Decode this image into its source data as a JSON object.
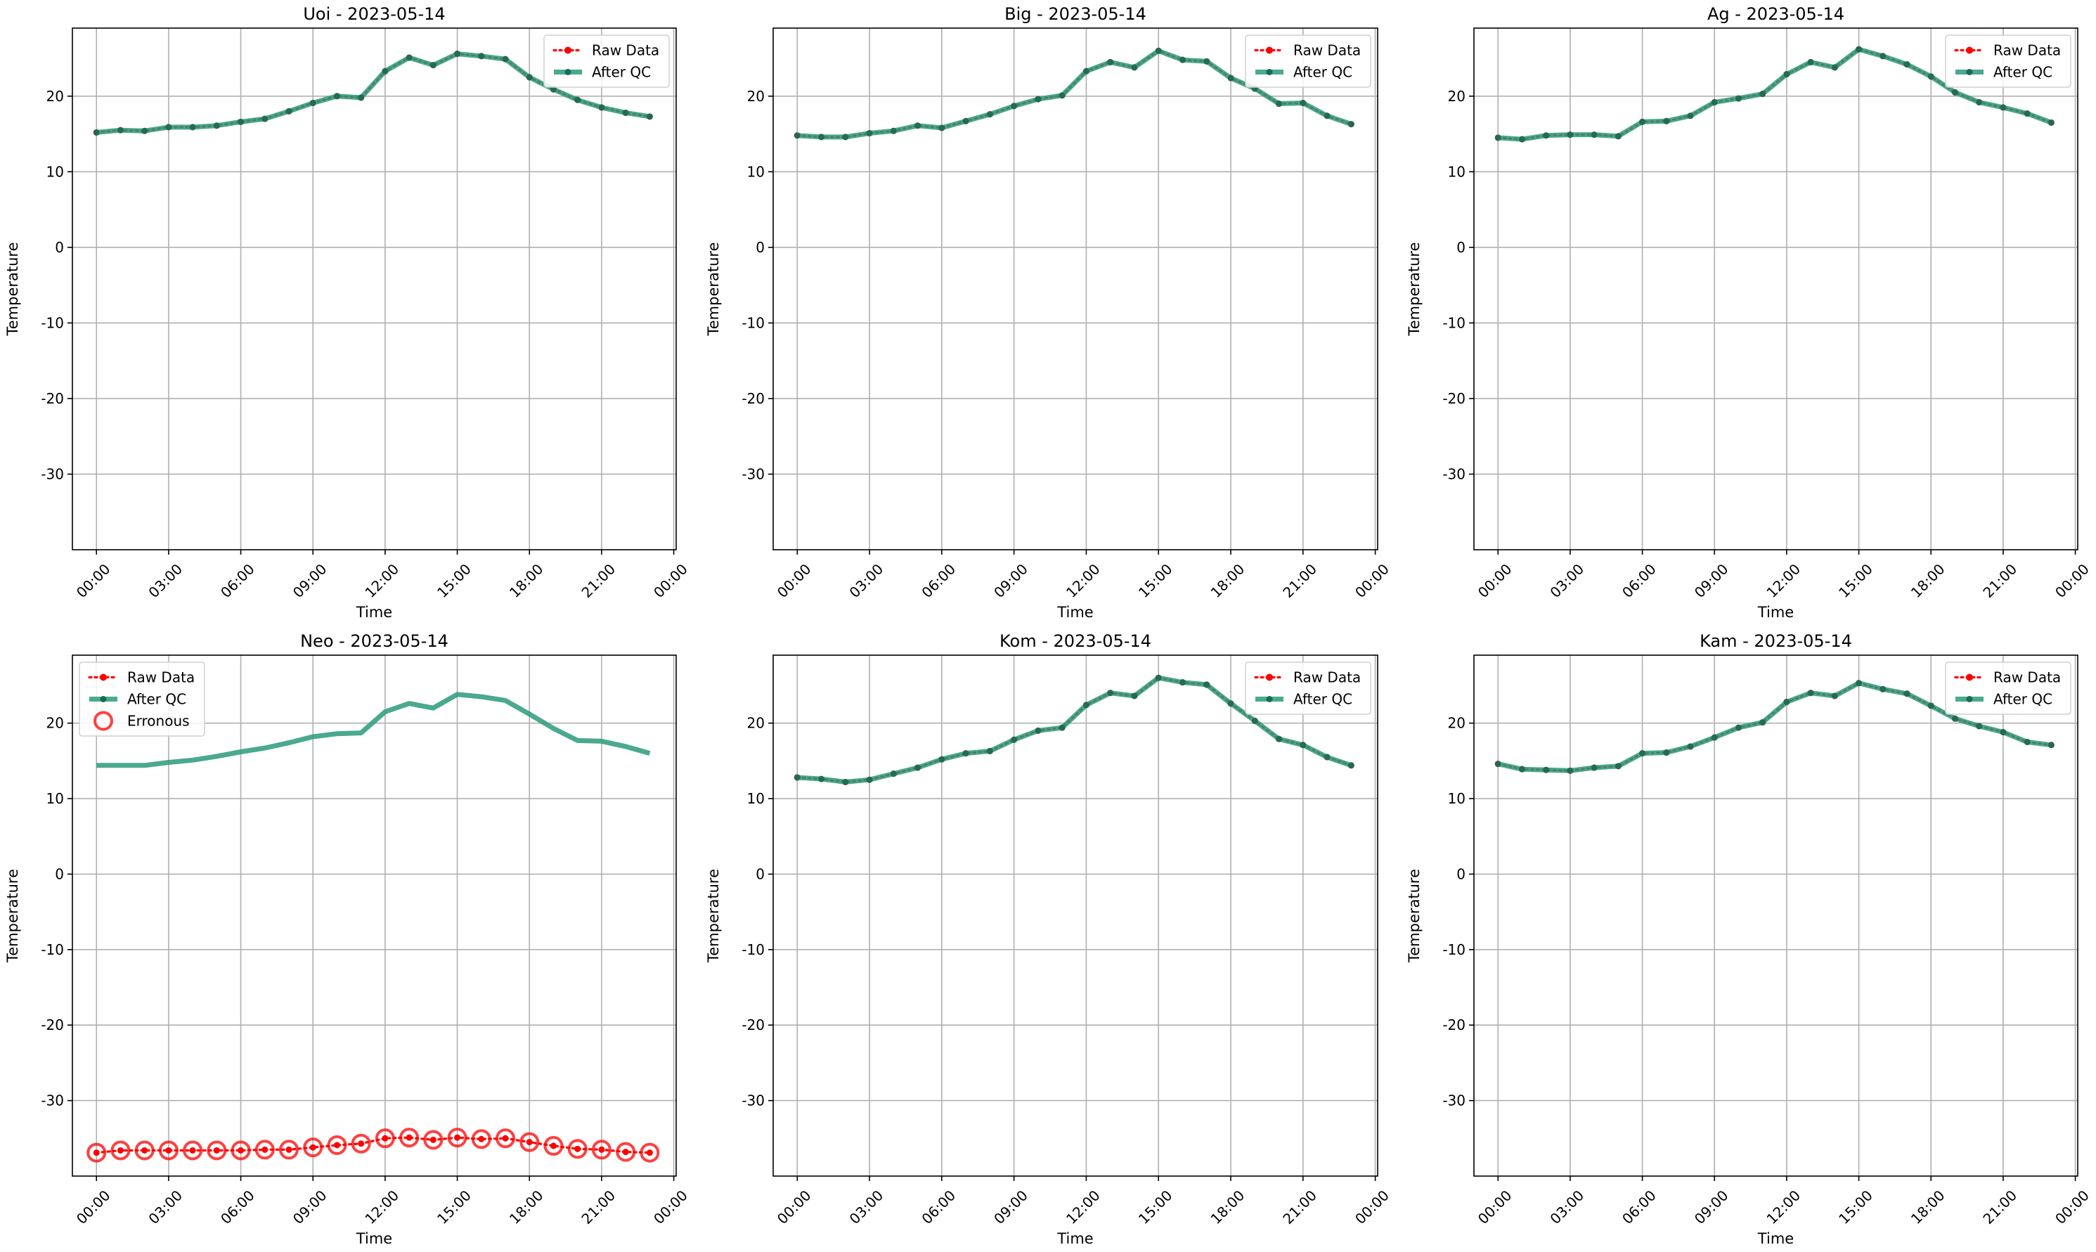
{
  "chart_data": [
    {
      "type": "line",
      "title": "Uoi - 2023-05-14",
      "xlabel": "Time",
      "ylabel": "Temperature",
      "ylim": [
        -40,
        29
      ],
      "xlim_hours": [
        -1,
        24.1
      ],
      "grid": true,
      "legend_position": "upper-right",
      "x_ticks": [
        "00:00",
        "03:00",
        "06:00",
        "09:00",
        "12:00",
        "15:00",
        "18:00",
        "21:00",
        "00:00"
      ],
      "y_ticks": [
        20,
        10,
        0,
        -10,
        -20,
        -30
      ],
      "x_hours": [
        0,
        1,
        2,
        3,
        4,
        5,
        6,
        7,
        8,
        9,
        10,
        11,
        12,
        13,
        14,
        15,
        16,
        17,
        18,
        19,
        20,
        21,
        22,
        23
      ],
      "series": [
        {
          "name": "Raw Data",
          "color": "#ff0000",
          "style": "dotted-markers",
          "values": [
            15.2,
            15.5,
            15.4,
            15.9,
            15.9,
            16.1,
            16.6,
            17.0,
            18.0,
            19.1,
            20.0,
            19.8,
            23.3,
            25.1,
            24.1,
            25.6,
            25.3,
            24.9,
            22.5,
            20.9,
            19.5,
            18.5,
            17.8,
            17.3
          ]
        },
        {
          "name": "After QC",
          "color": "#2a9a7a",
          "style": "thick-line",
          "values": [
            15.2,
            15.5,
            15.4,
            15.9,
            15.9,
            16.1,
            16.6,
            17.0,
            18.0,
            19.1,
            20.0,
            19.8,
            23.3,
            25.1,
            24.1,
            25.6,
            25.3,
            24.9,
            22.5,
            20.9,
            19.5,
            18.5,
            17.8,
            17.3
          ]
        }
      ]
    },
    {
      "type": "line",
      "title": "Big - 2023-05-14",
      "xlabel": "Time",
      "ylabel": "Temperature",
      "ylim": [
        -40,
        29
      ],
      "xlim_hours": [
        -1,
        24.1
      ],
      "grid": true,
      "legend_position": "upper-right",
      "x_ticks": [
        "00:00",
        "03:00",
        "06:00",
        "09:00",
        "12:00",
        "15:00",
        "18:00",
        "21:00",
        "00:00"
      ],
      "y_ticks": [
        20,
        10,
        0,
        -10,
        -20,
        -30
      ],
      "x_hours": [
        0,
        1,
        2,
        3,
        4,
        5,
        6,
        7,
        8,
        9,
        10,
        11,
        12,
        13,
        14,
        15,
        16,
        17,
        18,
        19,
        20,
        21,
        22,
        23
      ],
      "series": [
        {
          "name": "Raw Data",
          "color": "#ff0000",
          "style": "dotted-markers",
          "values": [
            14.8,
            14.6,
            14.6,
            15.1,
            15.4,
            16.1,
            15.8,
            16.7,
            17.6,
            18.7,
            19.6,
            20.1,
            23.3,
            24.5,
            23.8,
            26.0,
            24.8,
            24.6,
            22.4,
            21.0,
            19.0,
            19.1,
            17.4,
            16.3
          ]
        },
        {
          "name": "After QC",
          "color": "#2a9a7a",
          "style": "thick-line",
          "values": [
            14.8,
            14.6,
            14.6,
            15.1,
            15.4,
            16.1,
            15.8,
            16.7,
            17.6,
            18.7,
            19.6,
            20.1,
            23.3,
            24.5,
            23.8,
            26.0,
            24.8,
            24.6,
            22.4,
            21.0,
            19.0,
            19.1,
            17.4,
            16.3
          ]
        }
      ]
    },
    {
      "type": "line",
      "title": "Ag - 2023-05-14",
      "xlabel": "Time",
      "ylabel": "Temperature",
      "ylim": [
        -40,
        29
      ],
      "xlim_hours": [
        -1,
        24.1
      ],
      "grid": true,
      "legend_position": "upper-right",
      "x_ticks": [
        "00:00",
        "03:00",
        "06:00",
        "09:00",
        "12:00",
        "15:00",
        "18:00",
        "21:00",
        "00:00"
      ],
      "y_ticks": [
        20,
        10,
        0,
        -10,
        -20,
        -30
      ],
      "x_hours": [
        0,
        1,
        2,
        3,
        4,
        5,
        6,
        7,
        8,
        9,
        10,
        11,
        12,
        13,
        14,
        15,
        16,
        17,
        18,
        19,
        20,
        21,
        22,
        23
      ],
      "series": [
        {
          "name": "Raw Data",
          "color": "#ff0000",
          "style": "dotted-markers",
          "values": [
            14.5,
            14.3,
            14.8,
            14.9,
            14.9,
            14.7,
            16.6,
            16.7,
            17.4,
            19.2,
            19.7,
            20.3,
            22.9,
            24.5,
            23.8,
            26.2,
            25.3,
            24.2,
            22.6,
            20.5,
            19.2,
            18.5,
            17.7,
            16.5
          ]
        },
        {
          "name": "After QC",
          "color": "#2a9a7a",
          "style": "thick-line",
          "values": [
            14.5,
            14.3,
            14.8,
            14.9,
            14.9,
            14.7,
            16.6,
            16.7,
            17.4,
            19.2,
            19.7,
            20.3,
            22.9,
            24.5,
            23.8,
            26.2,
            25.3,
            24.2,
            22.6,
            20.5,
            19.2,
            18.5,
            17.7,
            16.5
          ]
        }
      ]
    },
    {
      "type": "line",
      "title": "Neo - 2023-05-14",
      "xlabel": "Time",
      "ylabel": "Temperature",
      "ylim": [
        -40,
        29
      ],
      "xlim_hours": [
        -1,
        24.1
      ],
      "grid": true,
      "legend_position": "upper-left",
      "x_ticks": [
        "00:00",
        "03:00",
        "06:00",
        "09:00",
        "12:00",
        "15:00",
        "18:00",
        "21:00",
        "00:00"
      ],
      "y_ticks": [
        20,
        10,
        0,
        -10,
        -20,
        -30
      ],
      "x_hours": [
        0,
        1,
        2,
        3,
        4,
        5,
        6,
        7,
        8,
        9,
        10,
        11,
        12,
        13,
        14,
        15,
        16,
        17,
        18,
        19,
        20,
        21,
        22,
        23
      ],
      "series": [
        {
          "name": "Raw Data",
          "color": "#ff0000",
          "style": "dotted-markers",
          "values": [
            -36.9,
            -36.6,
            -36.6,
            -36.6,
            -36.6,
            -36.6,
            -36.6,
            -36.5,
            -36.5,
            -36.2,
            -35.9,
            -35.7,
            -35.0,
            -34.9,
            -35.2,
            -34.9,
            -35.1,
            -35.0,
            -35.5,
            -36.0,
            -36.4,
            -36.5,
            -36.8,
            -36.9
          ]
        },
        {
          "name": "After QC",
          "color": "#2a9a7a",
          "style": "thick-line-no-markers",
          "values": [
            14.4,
            14.4,
            14.4,
            14.8,
            15.1,
            15.6,
            16.2,
            16.7,
            17.4,
            18.2,
            18.6,
            18.7,
            21.5,
            22.6,
            22.0,
            23.8,
            23.5,
            23.0,
            21.2,
            19.3,
            17.7,
            17.6,
            16.9,
            16.0
          ]
        },
        {
          "name": "Erronous",
          "color": "#ff0000",
          "style": "open-circles",
          "values": [
            -36.9,
            -36.6,
            -36.6,
            -36.6,
            -36.6,
            -36.6,
            -36.6,
            -36.5,
            -36.5,
            -36.2,
            -35.9,
            -35.7,
            -35.0,
            -34.9,
            -35.2,
            -34.9,
            -35.1,
            -35.0,
            -35.5,
            -36.0,
            -36.4,
            -36.5,
            -36.8,
            -36.9
          ]
        }
      ]
    },
    {
      "type": "line",
      "title": "Kom - 2023-05-14",
      "xlabel": "Time",
      "ylabel": "Temperature",
      "ylim": [
        -40,
        29
      ],
      "xlim_hours": [
        -1,
        24.1
      ],
      "grid": true,
      "legend_position": "upper-right",
      "x_ticks": [
        "00:00",
        "03:00",
        "06:00",
        "09:00",
        "12:00",
        "15:00",
        "18:00",
        "21:00",
        "00:00"
      ],
      "y_ticks": [
        20,
        10,
        0,
        -10,
        -20,
        -30
      ],
      "x_hours": [
        0,
        1,
        2,
        3,
        4,
        5,
        6,
        7,
        8,
        9,
        10,
        11,
        12,
        13,
        14,
        15,
        16,
        17,
        18,
        19,
        20,
        21,
        22,
        23
      ],
      "series": [
        {
          "name": "Raw Data",
          "color": "#ff0000",
          "style": "dotted-markers",
          "values": [
            12.8,
            12.6,
            12.2,
            12.5,
            13.3,
            14.1,
            15.2,
            16.0,
            16.3,
            17.8,
            19.0,
            19.4,
            22.4,
            24.0,
            23.6,
            26.0,
            25.4,
            25.1,
            22.6,
            20.3,
            17.9,
            17.1,
            15.5,
            14.4
          ]
        },
        {
          "name": "After QC",
          "color": "#2a9a7a",
          "style": "thick-line",
          "values": [
            12.8,
            12.6,
            12.2,
            12.5,
            13.3,
            14.1,
            15.2,
            16.0,
            16.3,
            17.8,
            19.0,
            19.4,
            22.4,
            24.0,
            23.6,
            26.0,
            25.4,
            25.1,
            22.6,
            20.3,
            17.9,
            17.1,
            15.5,
            14.4
          ]
        }
      ]
    },
    {
      "type": "line",
      "title": "Kam - 2023-05-14",
      "xlabel": "Time",
      "ylabel": "Temperature",
      "ylim": [
        -40,
        29
      ],
      "xlim_hours": [
        -1,
        24.1
      ],
      "grid": true,
      "legend_position": "upper-right",
      "x_ticks": [
        "00:00",
        "03:00",
        "06:00",
        "09:00",
        "12:00",
        "15:00",
        "18:00",
        "21:00",
        "00:00"
      ],
      "y_ticks": [
        20,
        10,
        0,
        -10,
        -20,
        -30
      ],
      "x_hours": [
        0,
        1,
        2,
        3,
        4,
        5,
        6,
        7,
        8,
        9,
        10,
        11,
        12,
        13,
        14,
        15,
        16,
        17,
        18,
        19,
        20,
        21,
        22,
        23
      ],
      "series": [
        {
          "name": "Raw Data",
          "color": "#ff0000",
          "style": "dotted-markers",
          "values": [
            14.6,
            13.9,
            13.8,
            13.7,
            14.1,
            14.3,
            16.0,
            16.1,
            16.9,
            18.1,
            19.4,
            20.1,
            22.8,
            24.0,
            23.6,
            25.3,
            24.5,
            23.9,
            22.3,
            20.6,
            19.6,
            18.8,
            17.5,
            17.1
          ]
        },
        {
          "name": "After QC",
          "color": "#2a9a7a",
          "style": "thick-line",
          "values": [
            14.6,
            13.9,
            13.8,
            13.7,
            14.1,
            14.3,
            16.0,
            16.1,
            16.9,
            18.1,
            19.4,
            20.1,
            22.8,
            24.0,
            23.6,
            25.3,
            24.5,
            23.9,
            22.3,
            20.6,
            19.6,
            18.8,
            17.5,
            17.1
          ]
        }
      ]
    }
  ]
}
